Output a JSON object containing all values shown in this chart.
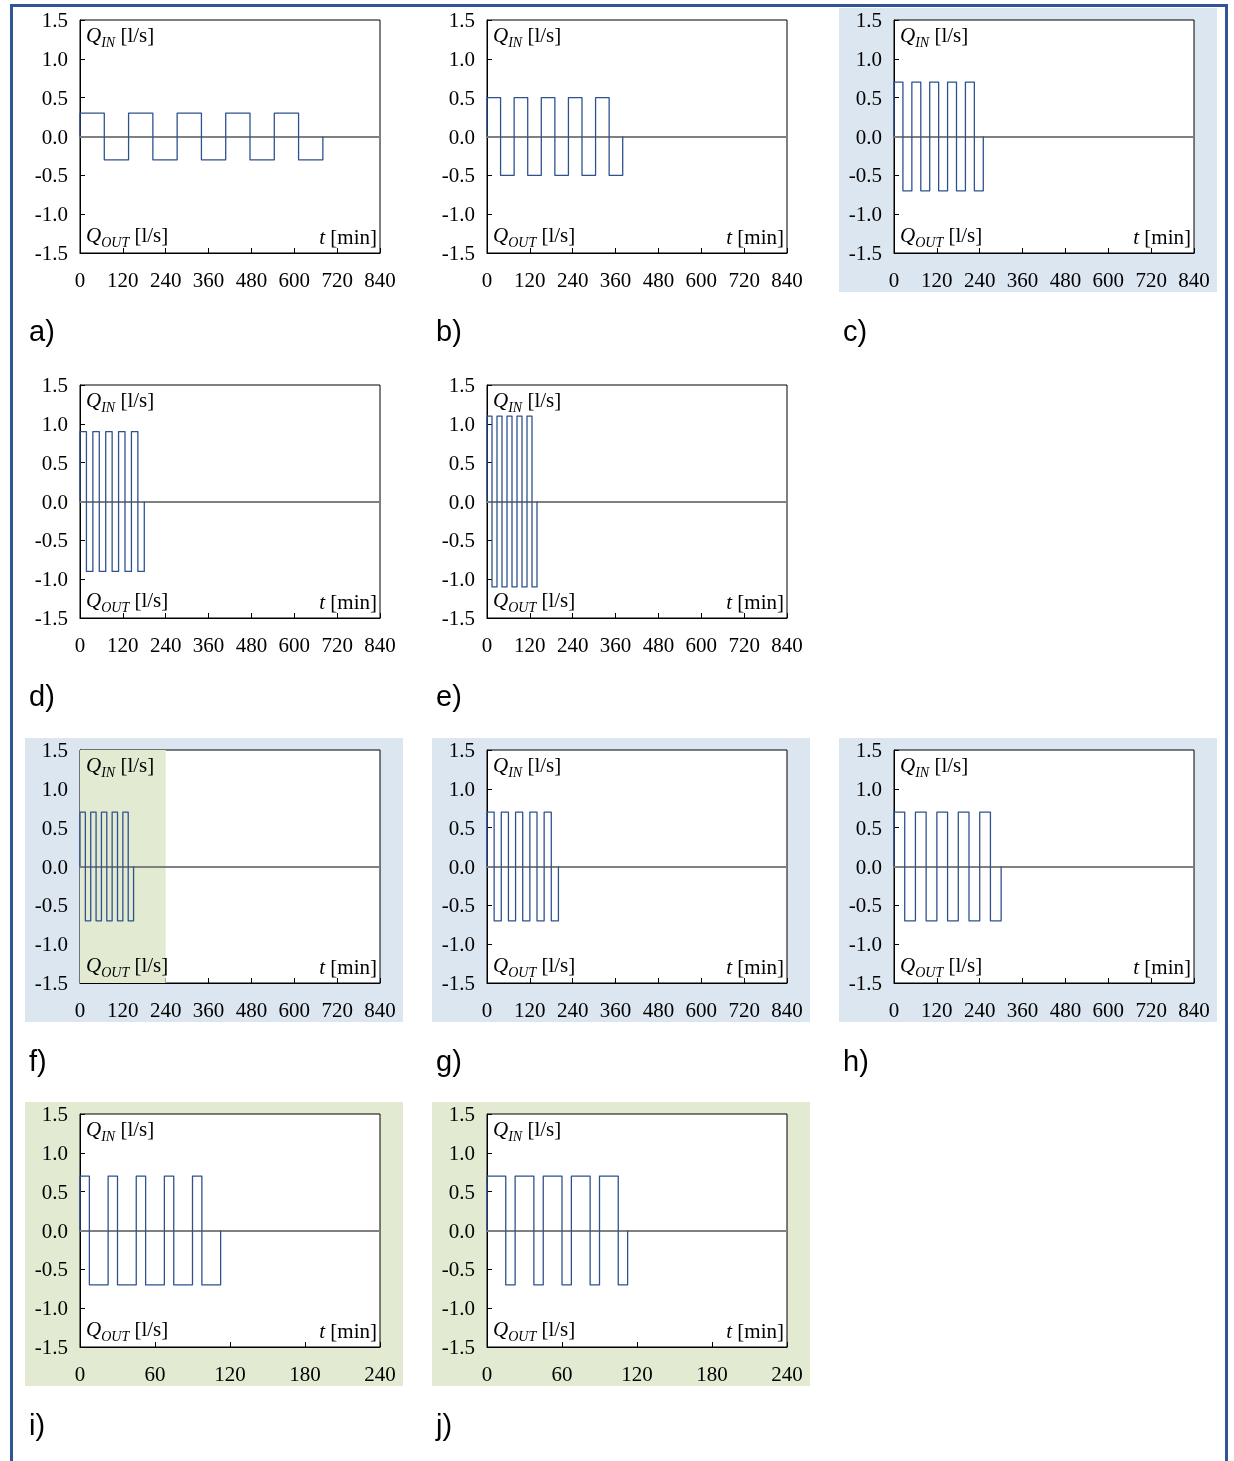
{
  "chart_data": [
    {
      "type": "step",
      "title": "a)",
      "xlabel": "t [min]",
      "annotations": [
        "Q$_{IN}$ [l/s]",
        "Q$_{OUT}$ [l/s]"
      ],
      "marker": "none",
      "color": "#2f528f",
      "x": [
        0,
        0,
        68,
        136,
        204,
        272,
        340,
        408,
        476,
        544,
        612,
        680
      ],
      "values": [
        0,
        0.3,
        -0.3,
        0.3,
        -0.3,
        0.3,
        -0.3,
        0.3,
        -0.3,
        0.3,
        -0.3,
        0
      ],
      "xlim": [
        0,
        840
      ],
      "xticks": [
        0,
        120,
        240,
        360,
        480,
        600,
        720,
        840
      ],
      "ylim": [
        -1.5,
        1.5
      ],
      "yticks": [
        -1.5,
        {
          "value": -1,
          "label": "-1.0"
        },
        -0.5,
        {
          "value": 0,
          "label": "0.0"
        },
        0.5,
        {
          "value": 1,
          "label": "1.0"
        },
        1.5
      ],
      "ref_lines": [
        {
          "axis": "y",
          "value": 0,
          "color": "#808080"
        }
      ]
    },
    {
      "type": "step",
      "title": "b)",
      "xlabel": "t [min]",
      "annotations": [
        "Q$_{IN}$ [l/s]",
        "Q$_{OUT}$ [l/s]"
      ],
      "marker": "none",
      "color": "#2f528f",
      "x": [
        0,
        0,
        38,
        76,
        114,
        152,
        190,
        228,
        266,
        304,
        342,
        380
      ],
      "values": [
        0,
        0.5,
        -0.5,
        0.5,
        -0.5,
        0.5,
        -0.5,
        0.5,
        -0.5,
        0.5,
        -0.5,
        0
      ],
      "xlim": [
        0,
        840
      ],
      "xticks": [
        0,
        120,
        240,
        360,
        480,
        600,
        720,
        840
      ],
      "ylim": [
        -1.5,
        1.5
      ],
      "yticks": [
        -1.5,
        {
          "value": -1,
          "label": "-1.0"
        },
        -0.5,
        {
          "value": 0,
          "label": "0.0"
        },
        0.5,
        {
          "value": 1,
          "label": "1.0"
        },
        1.5
      ],
      "ref_lines": [
        {
          "axis": "y",
          "value": 0,
          "color": "#808080"
        }
      ]
    },
    {
      "type": "step",
      "title": "c)",
      "xlabel": "t [min]",
      "annotations": [
        "Q$_{IN}$ [l/s]",
        "Q$_{OUT}$ [l/s]"
      ],
      "marker": "none",
      "color": "#2f528f",
      "x": [
        0,
        0,
        25,
        50,
        75,
        100,
        125,
        150,
        175,
        200,
        225,
        250
      ],
      "values": [
        0,
        0.7,
        -0.7,
        0.7,
        -0.7,
        0.7,
        -0.7,
        0.7,
        -0.7,
        0.7,
        -0.7,
        0
      ],
      "xlim": [
        0,
        840
      ],
      "xticks": [
        0,
        120,
        240,
        360,
        480,
        600,
        720,
        840
      ],
      "ylim": [
        -1.5,
        1.5
      ],
      "yticks": [
        -1.5,
        {
          "value": -1,
          "label": "-1.0"
        },
        -0.5,
        {
          "value": 0,
          "label": "0.0"
        },
        0.5,
        {
          "value": 1,
          "label": "1.0"
        },
        1.5
      ],
      "ref_lines": [
        {
          "axis": "y",
          "value": 0,
          "color": "#808080"
        }
      ]
    },
    {
      "type": "step",
      "title": "d)",
      "xlabel": "t [min]",
      "annotations": [
        "Q$_{IN}$ [l/s]",
        "Q$_{OUT}$ [l/s]"
      ],
      "marker": "none",
      "color": "#2f528f",
      "x": [
        0,
        0,
        18,
        36,
        54,
        72,
        90,
        108,
        126,
        144,
        162,
        180
      ],
      "values": [
        0,
        0.9,
        -0.9,
        0.9,
        -0.9,
        0.9,
        -0.9,
        0.9,
        -0.9,
        0.9,
        -0.9,
        0
      ],
      "xlim": [
        0,
        840
      ],
      "xticks": [
        0,
        120,
        240,
        360,
        480,
        600,
        720,
        840
      ],
      "ylim": [
        -1.5,
        1.5
      ],
      "yticks": [
        -1.5,
        {
          "value": -1,
          "label": "-1.0"
        },
        -0.5,
        {
          "value": 0,
          "label": "0.0"
        },
        0.5,
        {
          "value": 1,
          "label": "1.0"
        },
        1.5
      ],
      "ref_lines": [
        {
          "axis": "y",
          "value": 0,
          "color": "#808080"
        }
      ]
    },
    {
      "type": "step",
      "title": "e)",
      "xlabel": "t [min]",
      "annotations": [
        "Q$_{IN}$ [l/s]",
        "Q$_{OUT}$ [l/s]"
      ],
      "marker": "none",
      "color": "#2f528f",
      "x": [
        0,
        0,
        14,
        28,
        42,
        56,
        70,
        84,
        98,
        112,
        126,
        140
      ],
      "values": [
        0,
        1.1,
        -1.1,
        1.1,
        -1.1,
        1.1,
        -1.1,
        1.1,
        -1.1,
        1.1,
        -1.1,
        0
      ],
      "xlim": [
        0,
        840
      ],
      "xticks": [
        0,
        120,
        240,
        360,
        480,
        600,
        720,
        840
      ],
      "ylim": [
        -1.5,
        1.5
      ],
      "yticks": [
        -1.5,
        {
          "value": -1,
          "label": "-1.0"
        },
        -0.5,
        {
          "value": 0,
          "label": "0.0"
        },
        0.5,
        {
          "value": 1,
          "label": "1.0"
        },
        1.5
      ],
      "ref_lines": [
        {
          "axis": "y",
          "value": 0,
          "color": "#808080"
        }
      ]
    },
    {
      "type": "step",
      "title": "f)",
      "xlabel": "t [min]",
      "annotations": [
        "Q$_{IN}$ [l/s]",
        "Q$_{OUT}$ [l/s]"
      ],
      "marker": "none",
      "color": "#2f528f",
      "x": [
        0,
        0,
        15,
        30,
        45,
        60,
        75,
        90,
        105,
        120,
        135,
        150
      ],
      "values": [
        0,
        0.7,
        -0.7,
        0.7,
        -0.7,
        0.7,
        -0.7,
        0.7,
        -0.7,
        0.7,
        -0.7,
        0
      ],
      "xlim": [
        0,
        840
      ],
      "xticks": [
        0,
        120,
        240,
        360,
        480,
        600,
        720,
        840
      ],
      "ylim": [
        -1.5,
        1.5
      ],
      "yticks": [
        -1.5,
        {
          "value": -1,
          "label": "-1.0"
        },
        -0.5,
        {
          "value": 0,
          "label": "0.0"
        },
        0.5,
        {
          "value": 1,
          "label": "1.0"
        },
        1.5
      ],
      "ref_lines": [
        {
          "axis": "y",
          "value": 0,
          "color": "#808080"
        }
      ],
      "bands": [
        {
          "axis": "x",
          "from": 0,
          "to": 240,
          "color": "#e2ebd2"
        }
      ]
    },
    {
      "type": "step",
      "title": "g)",
      "xlabel": "t [min]",
      "annotations": [
        "Q$_{IN}$ [l/s]",
        "Q$_{OUT}$ [l/s]"
      ],
      "marker": "none",
      "color": "#2f528f",
      "x": [
        0,
        0,
        20,
        40,
        60,
        80,
        100,
        120,
        140,
        160,
        180,
        200
      ],
      "values": [
        0,
        0.7,
        -0.7,
        0.7,
        -0.7,
        0.7,
        -0.7,
        0.7,
        -0.7,
        0.7,
        -0.7,
        0
      ],
      "xlim": [
        0,
        840
      ],
      "xticks": [
        0,
        120,
        240,
        360,
        480,
        600,
        720,
        840
      ],
      "ylim": [
        -1.5,
        1.5
      ],
      "yticks": [
        -1.5,
        {
          "value": -1,
          "label": "-1.0"
        },
        -0.5,
        {
          "value": 0,
          "label": "0.0"
        },
        0.5,
        {
          "value": 1,
          "label": "1.0"
        },
        1.5
      ],
      "ref_lines": [
        {
          "axis": "y",
          "value": 0,
          "color": "#808080"
        }
      ]
    },
    {
      "type": "step",
      "title": "h)",
      "xlabel": "t [min]",
      "annotations": [
        "Q$_{IN}$ [l/s]",
        "Q$_{OUT}$ [l/s]"
      ],
      "marker": "none",
      "color": "#2f528f",
      "x": [
        0,
        0,
        30,
        60,
        90,
        120,
        150,
        180,
        210,
        240,
        270,
        300
      ],
      "values": [
        0,
        0.7,
        -0.7,
        0.7,
        -0.7,
        0.7,
        -0.7,
        0.7,
        -0.7,
        0.7,
        -0.7,
        0
      ],
      "xlim": [
        0,
        840
      ],
      "xticks": [
        0,
        120,
        240,
        360,
        480,
        600,
        720,
        840
      ],
      "ylim": [
        -1.5,
        1.5
      ],
      "yticks": [
        -1.5,
        {
          "value": -1,
          "label": "-1.0"
        },
        -0.5,
        {
          "value": 0,
          "label": "0.0"
        },
        0.5,
        {
          "value": 1,
          "label": "1.0"
        },
        1.5
      ],
      "ref_lines": [
        {
          "axis": "y",
          "value": 0,
          "color": "#808080"
        }
      ]
    },
    {
      "type": "step",
      "title": "i)",
      "xlabel": "t [min]",
      "annotations": [
        "Q$_{IN}$ [l/s]",
        "Q$_{OUT}$ [l/s]"
      ],
      "marker": "none",
      "color": "#2f528f",
      "x": [
        0,
        0,
        7.5,
        22.5,
        30,
        45,
        52.5,
        67.5,
        75,
        90,
        97.5,
        112.5
      ],
      "values": [
        0,
        0.7,
        -0.7,
        0.7,
        -0.7,
        0.7,
        -0.7,
        0.7,
        -0.7,
        0.7,
        -0.7,
        0
      ],
      "xlim": [
        0,
        240
      ],
      "xticks": [
        0,
        60,
        120,
        180,
        240
      ],
      "ylim": [
        -1.5,
        1.5
      ],
      "yticks": [
        -1.5,
        {
          "value": -1,
          "label": "-1.0"
        },
        -0.5,
        {
          "value": 0,
          "label": "0.0"
        },
        0.5,
        {
          "value": 1,
          "label": "1.0"
        },
        1.5
      ],
      "ref_lines": [
        {
          "axis": "y",
          "value": 0,
          "color": "#808080"
        }
      ]
    },
    {
      "type": "step",
      "title": "j)",
      "xlabel": "t [min]",
      "annotations": [
        "Q$_{IN}$ [l/s]",
        "Q$_{OUT}$ [l/s]"
      ],
      "marker": "none",
      "color": "#2f528f",
      "x": [
        0,
        0,
        15,
        22.5,
        37.5,
        45,
        60,
        67.5,
        82.5,
        90,
        105,
        112.5
      ],
      "values": [
        0,
        0.7,
        -0.7,
        0.7,
        -0.7,
        0.7,
        -0.7,
        0.7,
        -0.7,
        0.7,
        -0.7,
        0
      ],
      "xlim": [
        0,
        240
      ],
      "xticks": [
        0,
        60,
        120,
        180,
        240
      ],
      "ylim": [
        -1.5,
        1.5
      ],
      "yticks": [
        -1.5,
        {
          "value": -1,
          "label": "-1.0"
        },
        -0.5,
        {
          "value": 0,
          "label": "0.0"
        },
        0.5,
        {
          "value": 1,
          "label": "1.0"
        },
        1.5
      ],
      "ref_lines": [
        {
          "axis": "y",
          "value": 0,
          "color": "#808080"
        }
      ]
    }
  ]
}
